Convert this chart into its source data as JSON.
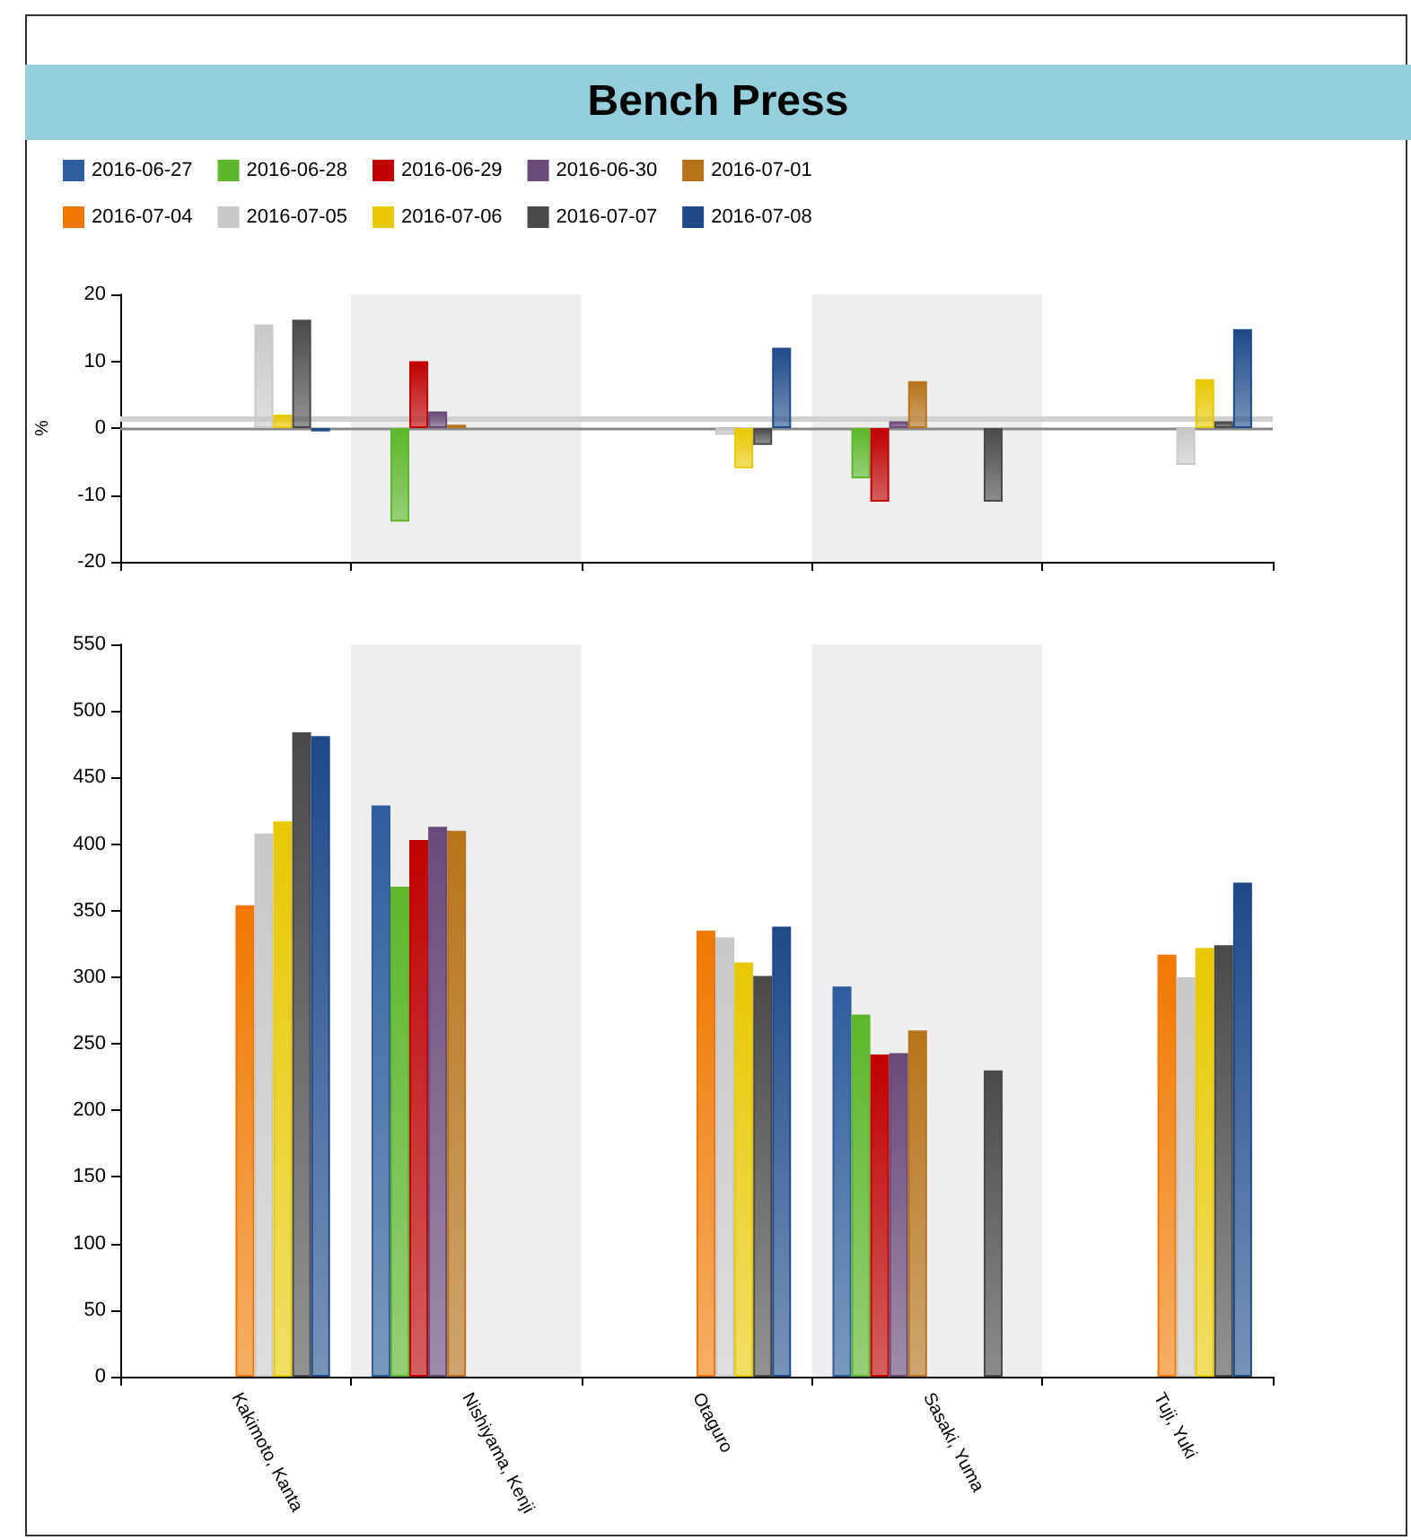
{
  "chart_data": [
    {
      "type": "bar",
      "title": "Bench Press",
      "ylabel": "%",
      "categories": [
        null,
        null,
        null,
        null,
        null
      ],
      "series": [
        {
          "name": "2016-06-27",
          "color": "#2e5e9e",
          "values": [
            null,
            null,
            null,
            null,
            null
          ]
        },
        {
          "name": "2016-06-28",
          "color": "#5cb82a",
          "values": [
            null,
            -14,
            null,
            -7.5,
            null
          ]
        },
        {
          "name": "2016-06-29",
          "color": "#c00000",
          "values": [
            null,
            10,
            null,
            -11,
            null
          ]
        },
        {
          "name": "2016-06-30",
          "color": "#6a4a7a",
          "values": [
            null,
            2.5,
            null,
            1,
            null
          ]
        },
        {
          "name": "2016-07-01",
          "color": "#b8741a",
          "values": [
            null,
            0.5,
            null,
            7,
            null
          ]
        },
        {
          "name": "2016-07-04",
          "color": "#f07800",
          "values": [
            null,
            null,
            null,
            null,
            null
          ]
        },
        {
          "name": "2016-07-05",
          "color": "#c8c8c8",
          "values": [
            15.5,
            null,
            -1,
            null,
            -5.5
          ]
        },
        {
          "name": "2016-07-06",
          "color": "#e8c800",
          "values": [
            2,
            null,
            -6,
            null,
            7.3
          ]
        },
        {
          "name": "2016-07-07",
          "color": "#4a4a4a",
          "values": [
            16.2,
            null,
            -2.5,
            -11,
            1
          ]
        },
        {
          "name": "2016-07-08",
          "color": "#1e4a8a",
          "values": [
            -0.5,
            null,
            12,
            null,
            14.8
          ]
        }
      ],
      "ylim": [
        -20,
        20
      ],
      "yticks": [
        -20,
        -10,
        0,
        10,
        20
      ],
      "ref_lines": [
        {
          "axis": "y",
          "value": 0,
          "color": "#888888"
        },
        {
          "axis": "y",
          "value": 1.5,
          "color": "#d0d0d0"
        }
      ],
      "tick_labels": "y",
      "legend": "top left",
      "grid": false
    },
    {
      "type": "bar",
      "categories": [
        "Kakimoto, Kanta",
        "Nishiyama, Kenji",
        "Otaguro",
        "Sasaki, Yuma",
        "Tuji, Yuki"
      ],
      "series": [
        {
          "color": "#2e5e9e",
          "values": [
            null,
            429,
            null,
            293,
            null
          ]
        },
        {
          "color": "#5cb82a",
          "values": [
            null,
            368,
            null,
            272,
            null
          ]
        },
        {
          "color": "#c00000",
          "values": [
            null,
            403,
            null,
            242,
            null
          ]
        },
        {
          "color": "#6a4a7a",
          "values": [
            null,
            413,
            null,
            243,
            null
          ]
        },
        {
          "color": "#b8741a",
          "values": [
            null,
            410,
            null,
            260,
            null
          ]
        },
        {
          "color": "#f07800",
          "values": [
            354,
            null,
            335,
            null,
            317
          ]
        },
        {
          "color": "#c8c8c8",
          "values": [
            408,
            null,
            330,
            null,
            300
          ]
        },
        {
          "color": "#e8c800",
          "values": [
            417,
            null,
            311,
            null,
            322
          ]
        },
        {
          "color": "#4a4a4a",
          "values": [
            484,
            null,
            301,
            230,
            324
          ]
        },
        {
          "color": "#1e4a8a",
          "values": [
            481,
            null,
            338,
            null,
            371
          ]
        }
      ],
      "ylim": [
        0,
        550
      ],
      "yticks": [
        0,
        50,
        100,
        150,
        200,
        250,
        300,
        350,
        400,
        450,
        500,
        550
      ],
      "grid": false
    }
  ]
}
